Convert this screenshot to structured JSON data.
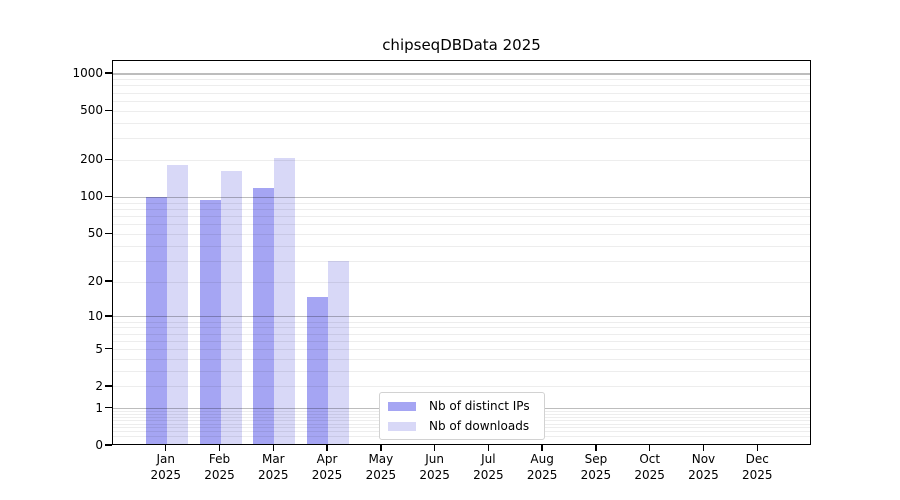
{
  "title": "chipseqDBData 2025",
  "colors": {
    "ips": "#a5a5f3",
    "downloads": "#d8d8f7",
    "axis": "#000000"
  },
  "y_axis": {
    "tick_values": [
      0,
      1,
      2,
      5,
      10,
      20,
      50,
      100,
      200,
      500,
      1000
    ],
    "tick_labels": [
      "0",
      "1",
      "2",
      "5",
      "10",
      "20",
      "50",
      "100",
      "200",
      "500",
      "1000"
    ]
  },
  "x_axis": {
    "months": [
      "Jan",
      "Feb",
      "Mar",
      "Apr",
      "May",
      "Jun",
      "Jul",
      "Aug",
      "Sep",
      "Oct",
      "Nov",
      "Dec"
    ],
    "year": "2025"
  },
  "legend": {
    "items": [
      {
        "label": "Nb of distinct IPs",
        "color_key": "ips"
      },
      {
        "label": "Nb of downloads",
        "color_key": "downloads"
      }
    ]
  },
  "chart_data": {
    "type": "bar",
    "title": "chipseqDBData 2025",
    "categories": [
      "Jan 2025",
      "Feb 2025",
      "Mar 2025",
      "Apr 2025",
      "May 2025",
      "Jun 2025",
      "Jul 2025",
      "Aug 2025",
      "Sep 2025",
      "Oct 2025",
      "Nov 2025",
      "Dec 2025"
    ],
    "series": [
      {
        "name": "Nb of distinct IPs",
        "color": "#a5a5f3",
        "values": [
          100,
          95,
          120,
          15,
          null,
          null,
          null,
          null,
          null,
          null,
          null,
          null
        ]
      },
      {
        "name": "Nb of downloads",
        "color": "#d8d8f7",
        "values": [
          185,
          165,
          210,
          30,
          null,
          null,
          null,
          null,
          null,
          null,
          null,
          null
        ]
      }
    ],
    "yscale": "log1p",
    "y_ticks": [
      0,
      1,
      2,
      5,
      10,
      20,
      50,
      100,
      200,
      500,
      1000
    ],
    "ylim": [
      0,
      1300
    ],
    "xlabel": "",
    "ylabel": "",
    "grid": "horizontal-over-bars",
    "legend_position": "lower center"
  }
}
